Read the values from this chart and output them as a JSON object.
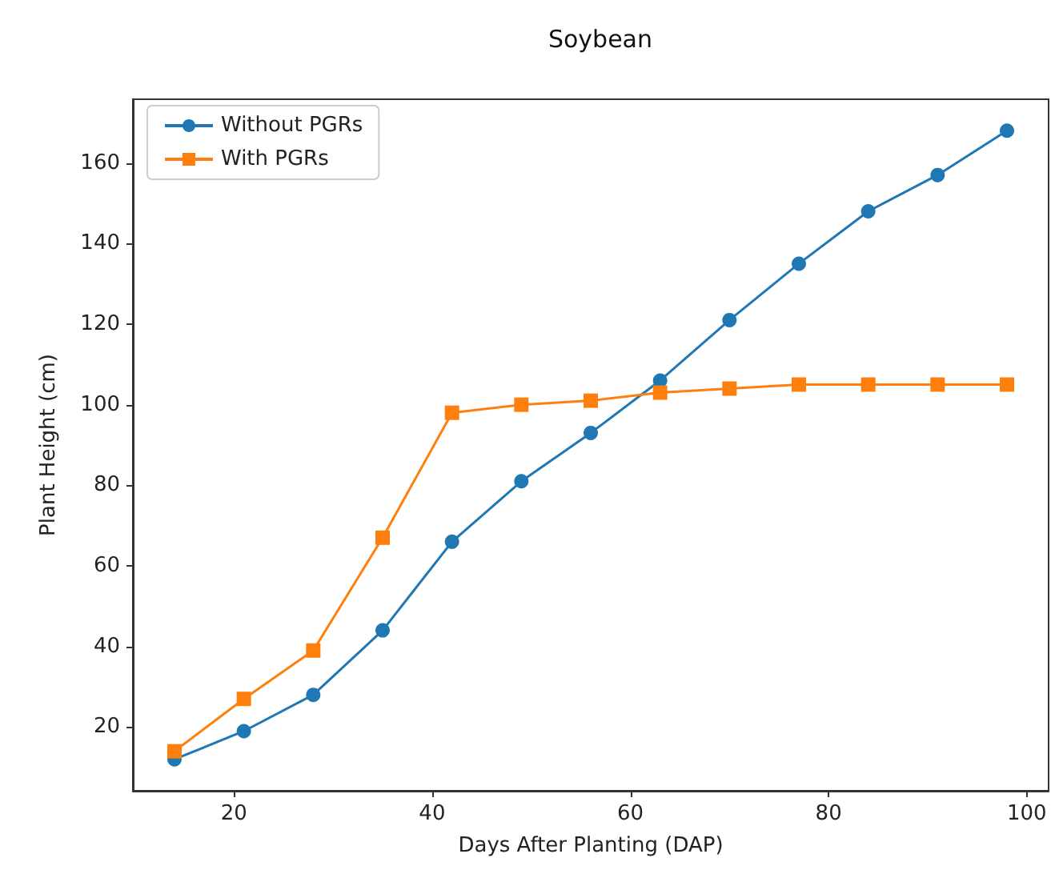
{
  "chart_data": {
    "type": "line",
    "title": "Soybean",
    "xlabel": "Days After Planting (DAP)",
    "ylabel": "Plant Height (cm)",
    "x": [
      14,
      21,
      28,
      35,
      42,
      49,
      56,
      63,
      70,
      77,
      84,
      91,
      98
    ],
    "series": [
      {
        "name": "Without PGRs",
        "color": "#1f77b4",
        "marker": "circle",
        "values": [
          12,
          19,
          28,
          44,
          66,
          81,
          93,
          106,
          121,
          135,
          148,
          157,
          168
        ]
      },
      {
        "name": "With PGRs",
        "color": "#ff7f0e",
        "marker": "square",
        "values": [
          14,
          27,
          39,
          67,
          98,
          100,
          101,
          103,
          104,
          105,
          105,
          105,
          105
        ]
      }
    ],
    "xlim": [
      9.8,
      102.2
    ],
    "ylim": [
      4.2,
      175.8
    ],
    "xticks": [
      20,
      40,
      60,
      80,
      100
    ],
    "yticks": [
      20,
      40,
      60,
      80,
      100,
      120,
      140,
      160
    ],
    "grid": false,
    "legend": "top left",
    "line_style": "solid"
  }
}
